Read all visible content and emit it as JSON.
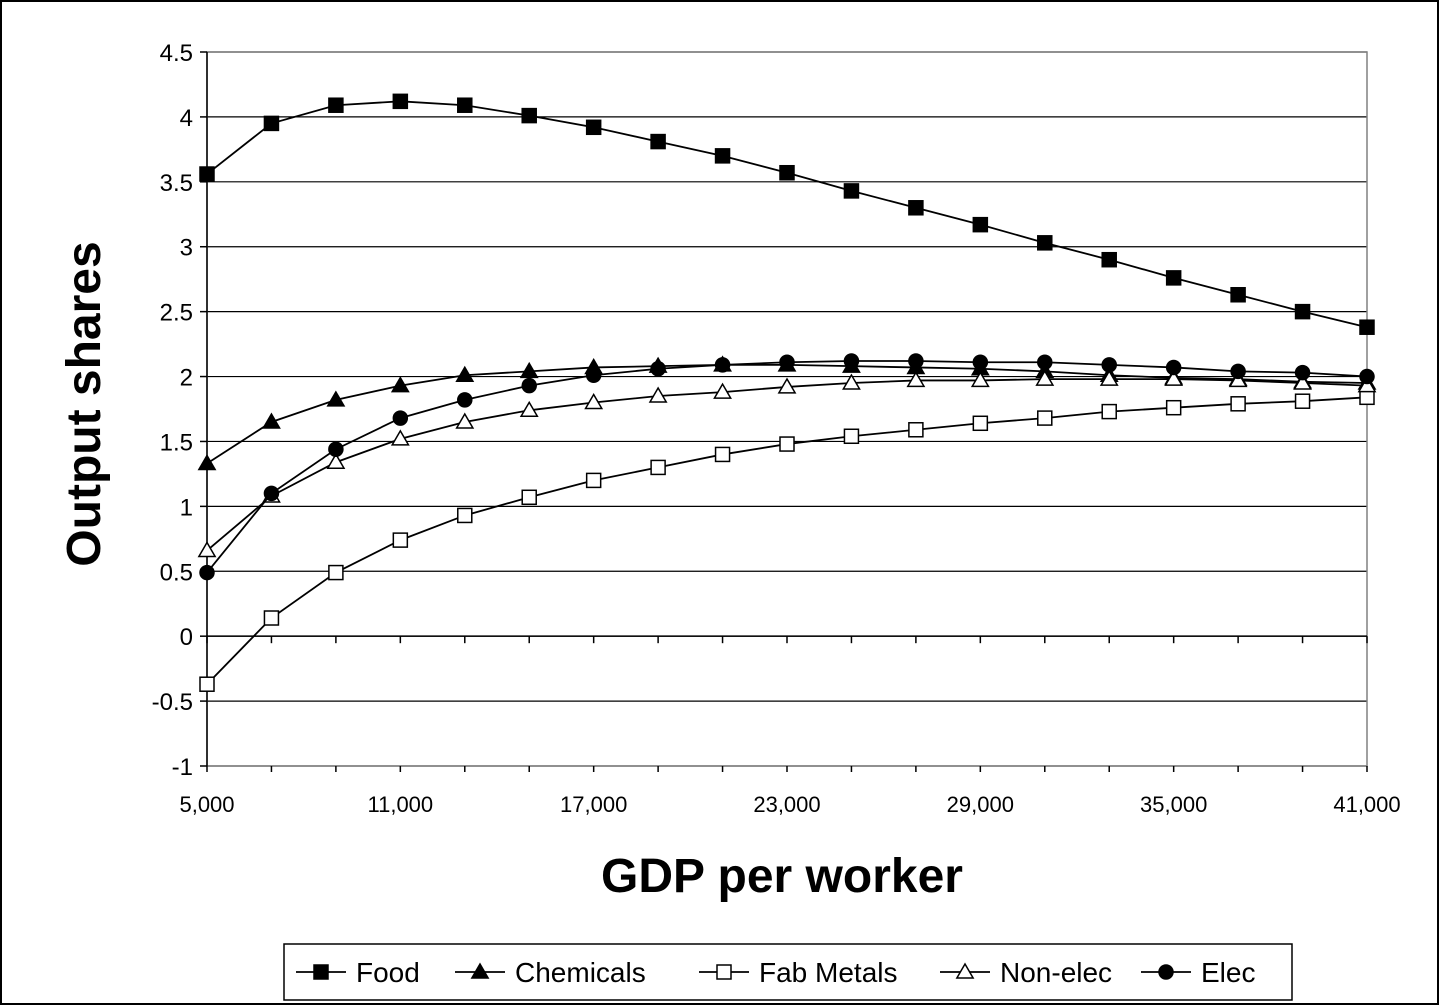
{
  "chart_data": {
    "type": "line",
    "title": "",
    "xlabel": "GDP per worker",
    "ylabel": "Output shares",
    "xlim": [
      5000,
      41000
    ],
    "ylim": [
      -1,
      4.5
    ],
    "y_ticks": [
      "4.5",
      "4",
      "3.5",
      "3",
      "2.5",
      "2",
      "1.5",
      "1",
      "0.5",
      "0",
      "-0.5",
      "-1"
    ],
    "y_tick_values": [
      4.5,
      4,
      3.5,
      3,
      2.5,
      2,
      1.5,
      1,
      0.5,
      0,
      -0.5,
      -1
    ],
    "x_tick_labels": [
      "5,000",
      "11,000",
      "17,000",
      "23,000",
      "29,000",
      "35,000",
      "41,000"
    ],
    "x_tick_values": [
      5000,
      11000,
      17000,
      23000,
      29000,
      35000,
      41000
    ],
    "grid": true,
    "legend_position": "bottom",
    "x": [
      5000,
      7000,
      9000,
      11000,
      13000,
      15000,
      17000,
      19000,
      21000,
      23000,
      25000,
      27000,
      29000,
      31000,
      33000,
      35000,
      37000,
      39000,
      41000
    ],
    "series": [
      {
        "name": "Food",
        "marker": "square-filled",
        "values": [
          3.56,
          3.95,
          4.09,
          4.12,
          4.09,
          4.01,
          3.92,
          3.81,
          3.7,
          3.57,
          3.43,
          3.3,
          3.17,
          3.03,
          2.9,
          2.76,
          2.63,
          2.5,
          2.38
        ]
      },
      {
        "name": "Chemicals",
        "marker": "triangle-filled",
        "values": [
          1.33,
          1.65,
          1.82,
          1.93,
          2.01,
          2.04,
          2.07,
          2.08,
          2.09,
          2.09,
          2.08,
          2.07,
          2.06,
          2.04,
          2.01,
          1.99,
          1.98,
          1.96,
          1.95
        ]
      },
      {
        "name": "Fab Metals",
        "marker": "square-open",
        "values": [
          -0.37,
          0.14,
          0.49,
          0.74,
          0.93,
          1.07,
          1.2,
          1.3,
          1.4,
          1.48,
          1.54,
          1.59,
          1.64,
          1.68,
          1.73,
          1.76,
          1.79,
          1.81,
          1.84
        ]
      },
      {
        "name": "Non-elec",
        "marker": "triangle-open",
        "values": [
          0.66,
          1.08,
          1.34,
          1.52,
          1.65,
          1.74,
          1.8,
          1.85,
          1.88,
          1.92,
          1.95,
          1.97,
          1.97,
          1.98,
          1.98,
          1.98,
          1.97,
          1.95,
          1.93
        ]
      },
      {
        "name": "Elec",
        "marker": "circle-filled",
        "values": [
          0.49,
          1.1,
          1.44,
          1.68,
          1.82,
          1.93,
          2.01,
          2.06,
          2.09,
          2.11,
          2.12,
          2.12,
          2.11,
          2.11,
          2.09,
          2.07,
          2.04,
          2.03,
          2.0
        ]
      }
    ]
  }
}
